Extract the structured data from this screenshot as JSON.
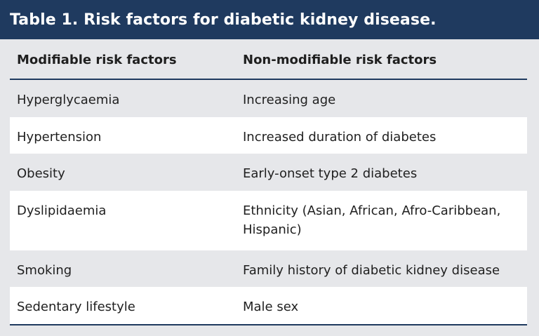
{
  "title": "Table 1. Risk factors for diabetic kidney disease.",
  "table": {
    "headers": [
      "Modifiable risk factors",
      "Non-modifiable risk factors"
    ],
    "rows": [
      [
        "Hyperglycaemia",
        "Increasing age"
      ],
      [
        "Hypertension",
        "Increased duration of diabetes"
      ],
      [
        "Obesity",
        "Early-onset type 2 diabetes"
      ],
      [
        "Dyslipidaemia",
        "Ethnicity (Asian, African, Afro-Caribbean, Hispanic)"
      ],
      [
        "Smoking",
        "Family history of diabetic kidney disease"
      ],
      [
        "Sedentary lifestyle",
        "Male sex"
      ]
    ]
  },
  "colors": {
    "title_bar": "#1f3a5f",
    "background": "#e6e7ea",
    "stripe": "#ffffff",
    "rule": "#1f3a5f"
  }
}
